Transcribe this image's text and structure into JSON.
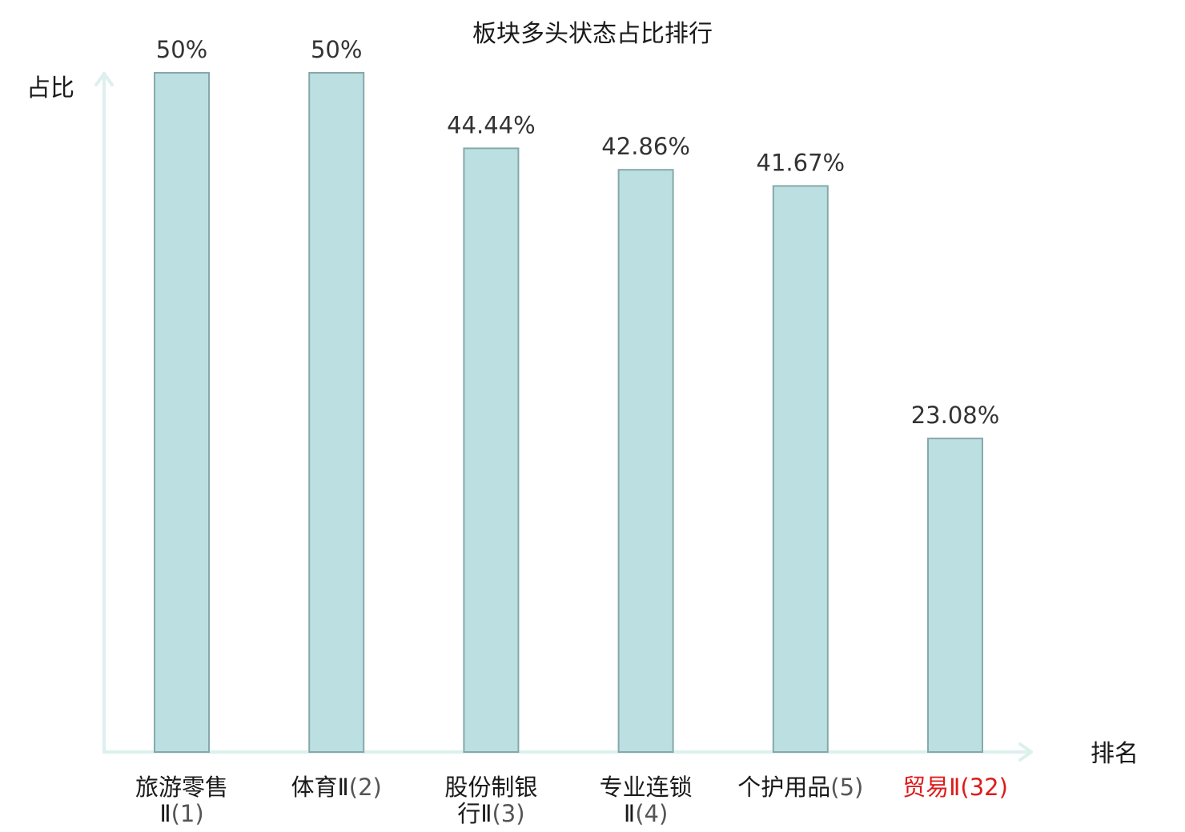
{
  "chart_data": {
    "type": "bar",
    "title": "板块多头状态占比排行",
    "ylabel": "占比",
    "xlabel": "排名",
    "ylim": [
      0,
      50
    ],
    "grid": false,
    "categories": [
      {
        "name_lines": [
          "旅游零售",
          "Ⅱ"
        ],
        "rank": "(1)",
        "highlight": false
      },
      {
        "name_lines": [
          "体育Ⅱ"
        ],
        "rank": "(2)",
        "highlight": false
      },
      {
        "name_lines": [
          "股份制银",
          "行Ⅱ"
        ],
        "rank": "(3)",
        "highlight": false
      },
      {
        "name_lines": [
          "专业连锁",
          "Ⅱ"
        ],
        "rank": "(4)",
        "highlight": false
      },
      {
        "name_lines": [
          "个护用品"
        ],
        "rank": "(5)",
        "highlight": false
      },
      {
        "name_lines": [
          "贸易Ⅱ"
        ],
        "rank": "(32)",
        "highlight": true
      }
    ],
    "values": [
      50,
      50,
      44.44,
      42.86,
      41.67,
      23.08
    ],
    "value_labels": [
      "50%",
      "50%",
      "44.44%",
      "42.86%",
      "41.67%",
      "23.08%"
    ]
  },
  "colors": {
    "bar_fill": "#bce0e2",
    "bar_stroke": "#86a8ab",
    "axis": "#ddf0ee",
    "highlight": "#dd1c1c"
  }
}
